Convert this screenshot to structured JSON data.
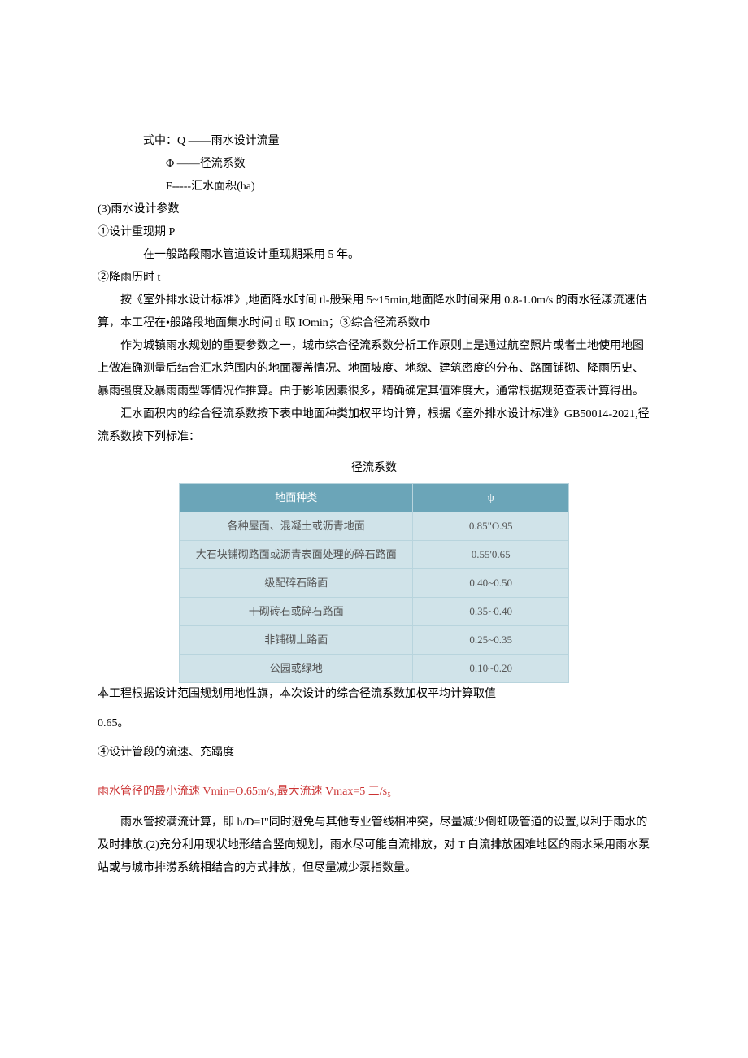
{
  "section1": {
    "line1": "式中：Q ——雨水设计流量",
    "line2": "Φ ——径流系数",
    "line3": "F-----汇水面积(ha)"
  },
  "section2": {
    "heading": "(3)雨水设计参数",
    "sub1_heading": "①设计重现期 P",
    "sub1_text": "在一般路段雨水管道设计重现期采用 5 年。",
    "sub2_heading": "②降雨历时 t",
    "sub2_text": "按《室外排水设计标准》,地面降水时间 tl-般采用 5~15min,地面降水时间采用 0.8-1.0m/s 的雨水径漾流速估算，本工程在•般路段地面集水时间 tl 取 IOmin；③综合径流系数巾",
    "para1": "作为城镇雨水规划的重要参数之一，城市综合径流系数分析工作原则上是通过航空照片或者土地使用地图上做准确测量后结合汇水范围内的地面覆盖情况、地面坡度、地貌、建筑密度的分布、路面铺砌、降雨历史、暴雨强度及暴雨雨型等情况作推算。由于影响因素很多，精确确定其值难度大，通常根据规范查表计算得出。",
    "para2": "汇水面积内的综合径流系数按下表中地面种类加权平均计算，根据《室外排水设计标准》GB50014-2021,径流系数按下列标准："
  },
  "table": {
    "title": "径流系数",
    "header_col1": "地面种类",
    "header_col2": "ψ",
    "rows": [
      {
        "col1": "各种屋面、混凝土或沥青地面",
        "col2": "0.85\"O.95"
      },
      {
        "col1": "大石块铺砌路面或沥青表面处理的碎石路面",
        "col2": "0.55'0.65"
      },
      {
        "col1": "级配碎石路面",
        "col2": "0.40~0.50"
      },
      {
        "col1": "干砌砖石或碎石路面",
        "col2": "0.35~0.40"
      },
      {
        "col1": "非铺砌土路面",
        "col2": "0.25~0.35"
      },
      {
        "col1": "公园或绿地",
        "col2": "0.10~0.20"
      }
    ]
  },
  "section3": {
    "para1": "本工程根据设计范围规划用地性旗，本次设计的综合径流系数加权平均计算取值",
    "para2": "0.65。",
    "sub4_heading": "④设计管段的流速、充蹋度",
    "red_text": "雨水管径的最小流速 Vmin=O.65m/s,最大流速 Vmax=5 三/s₅",
    "para3": "雨水管按满流计算，即 h/D=I\"同时避免与其他专业管线相冲突，尽量减少倒虹吸管道的设置,以利于雨水的及时排放.(2)充分利用现状地形结合竖向规划，雨水尽可能自流排放，对 T 白流排放困难地区的雨水采用雨水泵站或与城市排涝系统相结合的方式排放，但尽量减少泵指数量。"
  }
}
